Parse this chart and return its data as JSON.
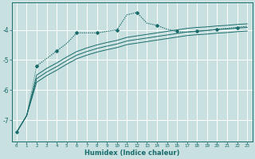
{
  "title": "",
  "xlabel": "Humidex (Indice chaleur)",
  "bg_color": "#c8e0e0",
  "grid_color": "#ffffff",
  "line_color": "#1a6b6b",
  "xlim": [
    -0.5,
    23.5
  ],
  "ylim": [
    -7.7,
    -3.1
  ],
  "xticks": [
    0,
    1,
    2,
    3,
    4,
    5,
    6,
    7,
    8,
    9,
    10,
    11,
    12,
    13,
    14,
    15,
    16,
    17,
    18,
    19,
    20,
    21,
    22,
    23
  ],
  "yticks": [
    -7,
    -6,
    -5,
    -4
  ],
  "line1_x": [
    0,
    1,
    2,
    3,
    4,
    5,
    6,
    7,
    8,
    9,
    10,
    11,
    12,
    13,
    14,
    15,
    16,
    17,
    18,
    19,
    20,
    21,
    22,
    23
  ],
  "line1_y": [
    -7.4,
    -6.85,
    -5.2,
    -4.95,
    -4.7,
    -4.45,
    -4.1,
    -4.1,
    -4.1,
    -4.05,
    -4.0,
    -3.5,
    -3.42,
    -3.78,
    -3.85,
    -3.98,
    -4.05,
    -4.08,
    -4.05,
    -4.02,
    -3.98,
    -3.95,
    -3.92,
    -3.88
  ],
  "line2_x": [
    2,
    3,
    4,
    5,
    6,
    7,
    8,
    9,
    10,
    11,
    12,
    13,
    14,
    15,
    16,
    17,
    18,
    19,
    20,
    21,
    22,
    23
  ],
  "line2_y": [
    -5.2,
    -4.95,
    -4.7,
    -4.45,
    -4.1,
    -4.1,
    -4.1,
    -4.05,
    -4.0,
    -3.5,
    -3.42,
    -3.78,
    -3.85,
    -3.98,
    -4.05,
    -4.08,
    -4.05,
    -4.02,
    -3.98,
    -3.95,
    -3.92,
    -3.88
  ],
  "line3_x": [
    0,
    1,
    2,
    3,
    4,
    5,
    6,
    7,
    8,
    9,
    10,
    11,
    12,
    13,
    14,
    15,
    16,
    17,
    18,
    19,
    20,
    21,
    22,
    23
  ],
  "line3_y": [
    -7.4,
    -6.85,
    -5.5,
    -5.28,
    -5.1,
    -4.9,
    -4.72,
    -4.6,
    -4.5,
    -4.42,
    -4.35,
    -4.25,
    -4.2,
    -4.15,
    -4.1,
    -4.05,
    -4.0,
    -3.95,
    -3.92,
    -3.9,
    -3.87,
    -3.85,
    -3.82,
    -3.8
  ],
  "line4_x": [
    0,
    1,
    2,
    3,
    4,
    5,
    6,
    7,
    8,
    9,
    10,
    11,
    12,
    13,
    14,
    15,
    16,
    17,
    18,
    19,
    20,
    21,
    22,
    23
  ],
  "line4_y": [
    -7.4,
    -6.85,
    -5.62,
    -5.4,
    -5.22,
    -5.02,
    -4.84,
    -4.72,
    -4.62,
    -4.54,
    -4.47,
    -4.37,
    -4.32,
    -4.27,
    -4.22,
    -4.17,
    -4.12,
    -4.07,
    -4.04,
    -4.02,
    -3.99,
    -3.97,
    -3.94,
    -3.92
  ],
  "line5_x": [
    0,
    1,
    2,
    3,
    4,
    5,
    6,
    7,
    8,
    9,
    10,
    11,
    12,
    13,
    14,
    15,
    16,
    17,
    18,
    19,
    20,
    21,
    22,
    23
  ],
  "line5_y": [
    -7.4,
    -6.85,
    -5.74,
    -5.52,
    -5.34,
    -5.14,
    -4.96,
    -4.84,
    -4.74,
    -4.66,
    -4.59,
    -4.49,
    -4.44,
    -4.39,
    -4.34,
    -4.29,
    -4.24,
    -4.19,
    -4.16,
    -4.14,
    -4.11,
    -4.09,
    -4.06,
    -4.04
  ]
}
